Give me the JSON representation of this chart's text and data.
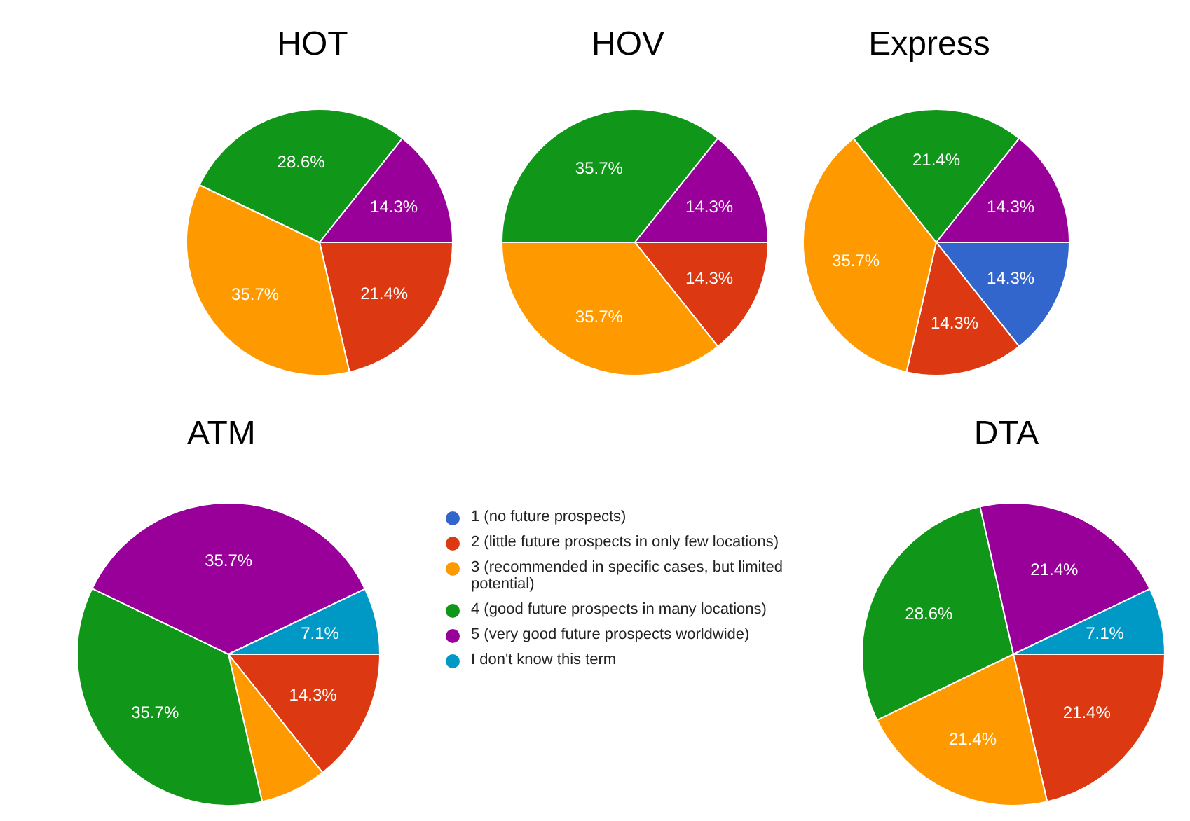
{
  "chart_data": [
    {
      "type": "pie",
      "title": "HOT",
      "categories": [
        null,
        null,
        null,
        null,
        null,
        null
      ],
      "values": [
        0,
        21.4,
        35.7,
        28.6,
        14.3,
        0
      ],
      "colors": [
        "#3366cc",
        "#dc3912",
        "#ff9900",
        "#109618",
        "#990099",
        "#0099c6"
      ],
      "value_labels": [
        null,
        "21.4%",
        "35.7%",
        "28.6%",
        "14.3%",
        null
      ]
    },
    {
      "type": "pie",
      "title": "HOV",
      "categories": [
        null,
        null,
        null,
        null,
        null,
        null
      ],
      "values": [
        0,
        14.3,
        35.7,
        35.7,
        14.3,
        0
      ],
      "colors": [
        "#3366cc",
        "#dc3912",
        "#ff9900",
        "#109618",
        "#990099",
        "#0099c6"
      ],
      "value_labels": [
        null,
        "14.3%",
        "35.7%",
        "35.7%",
        "14.3%",
        null
      ]
    },
    {
      "type": "pie",
      "title": "Express",
      "categories": [
        null,
        null,
        null,
        null,
        null,
        null
      ],
      "values": [
        14.3,
        14.3,
        35.7,
        21.4,
        14.3,
        0
      ],
      "colors": [
        "#3366cc",
        "#dc3912",
        "#ff9900",
        "#109618",
        "#990099",
        "#0099c6"
      ],
      "value_labels": [
        "14.3%",
        "14.3%",
        "35.7%",
        "21.4%",
        "14.3%",
        null
      ]
    },
    {
      "type": "pie",
      "title": "ATM",
      "categories": [
        "1 (no future prospects)",
        "2 (little future prospects in only few locations)",
        "3 (recommended in specific cases, but limited potential)",
        "4 (good future prospects in many locations)",
        "5 (very good future prospects worldwide)",
        "I don't know this term"
      ],
      "values": [
        0,
        14.3,
        7.1,
        35.7,
        35.7,
        7.1
      ],
      "colors": [
        "#3366cc",
        "#dc3912",
        "#ff9900",
        "#109618",
        "#990099",
        "#0099c6"
      ],
      "value_labels": [
        null,
        "14.3%",
        null,
        "35.7%",
        "35.7%",
        "7.1%"
      ],
      "legend": "right"
    },
    {
      "type": "pie",
      "title": "DTA",
      "categories": [
        null,
        null,
        null,
        null,
        null,
        null
      ],
      "values": [
        0,
        21.4,
        21.4,
        28.6,
        21.4,
        7.1
      ],
      "colors": [
        "#3366cc",
        "#dc3912",
        "#ff9900",
        "#109618",
        "#990099",
        "#0099c6"
      ],
      "value_labels": [
        null,
        "21.4%",
        "21.4%",
        "28.6%",
        "21.4%",
        "7.1%"
      ]
    }
  ]
}
